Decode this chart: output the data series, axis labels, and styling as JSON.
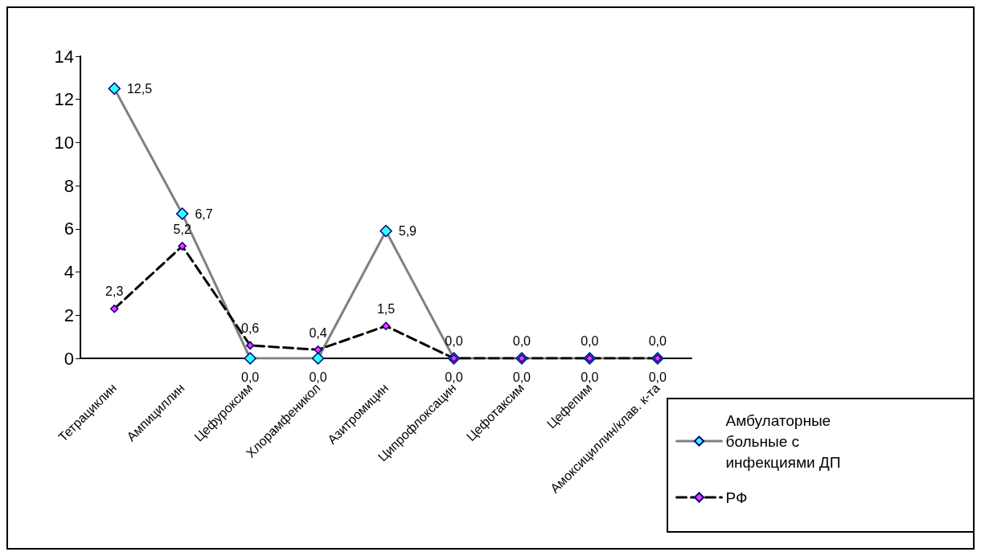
{
  "chart_data": {
    "type": "line",
    "categories": [
      "Тетрациклин",
      "Ампициллин",
      "Цефуроксим",
      "Хлорамфеникол",
      "Азитромицин",
      "Ципрофлоксацин",
      "Цефотаксим",
      "Цефепим",
      "Амоксициллин/клав. к-та"
    ],
    "series": [
      {
        "name": "Амбулаторные больные с инфекциями ДП",
        "color": "#808080",
        "line_style": "solid",
        "values": [
          12.5,
          6.7,
          0,
          0,
          5.9,
          0,
          0,
          0,
          0
        ],
        "value_labels": [
          "12,5",
          "6,7",
          "0,0",
          "0,0",
          "5,9",
          "0,0",
          "0,0",
          "0,0",
          "0,0"
        ]
      },
      {
        "name": "РФ",
        "color": "#000000",
        "line_style": "dashed",
        "values": [
          2.3,
          5.2,
          0.6,
          0.4,
          1.5,
          0,
          0,
          0,
          0
        ],
        "value_labels": [
          "2,3",
          "5,2",
          "0,6",
          "0,4",
          "1,5",
          "0,0",
          "0,0",
          "0,0",
          "0,0"
        ]
      }
    ],
    "ylim": [
      0,
      14
    ],
    "yticks": [
      0,
      2,
      4,
      6,
      8,
      10,
      12,
      14
    ],
    "grid": false,
    "legend": "bottom right",
    "marker": "diamond"
  }
}
